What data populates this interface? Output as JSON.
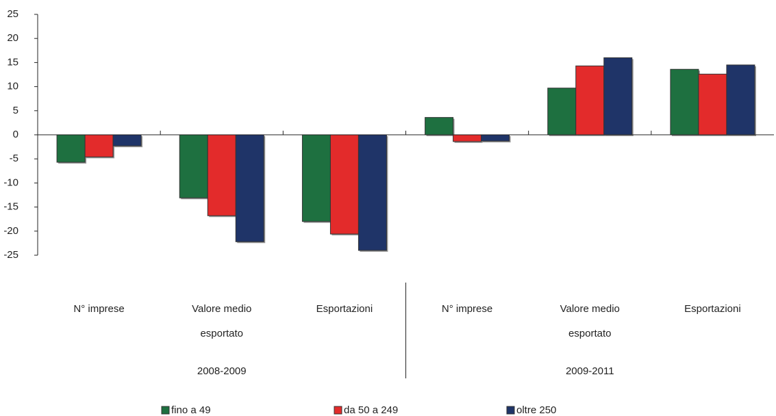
{
  "chart_data": {
    "type": "bar",
    "categories": [
      "N° imprese",
      "Valore medio esportato",
      "Esportazioni",
      "N° imprese",
      "Valore medio esportato",
      "Esportazioni"
    ],
    "groups": [
      "2008-2009",
      "2009-2011"
    ],
    "series": [
      {
        "name": "fino a 49",
        "color": "#1e7040",
        "values": [
          -5.7,
          -13.1,
          -18.0,
          3.6,
          9.7,
          13.6
        ]
      },
      {
        "name": "da 50 a 249",
        "color": "#e32b2b",
        "values": [
          -4.6,
          -16.8,
          -20.6,
          -1.4,
          14.3,
          12.6
        ]
      },
      {
        "name": "oltre 250",
        "color": "#1f3468",
        "values": [
          -2.3,
          -22.2,
          -24.0,
          -1.3,
          16.0,
          14.5
        ]
      }
    ],
    "ylim": [
      -25,
      25
    ],
    "yticks": [
      -25,
      -20,
      -15,
      -10,
      -5,
      0,
      5,
      10,
      15,
      20,
      25
    ],
    "grid": false,
    "legend": "bottom"
  }
}
